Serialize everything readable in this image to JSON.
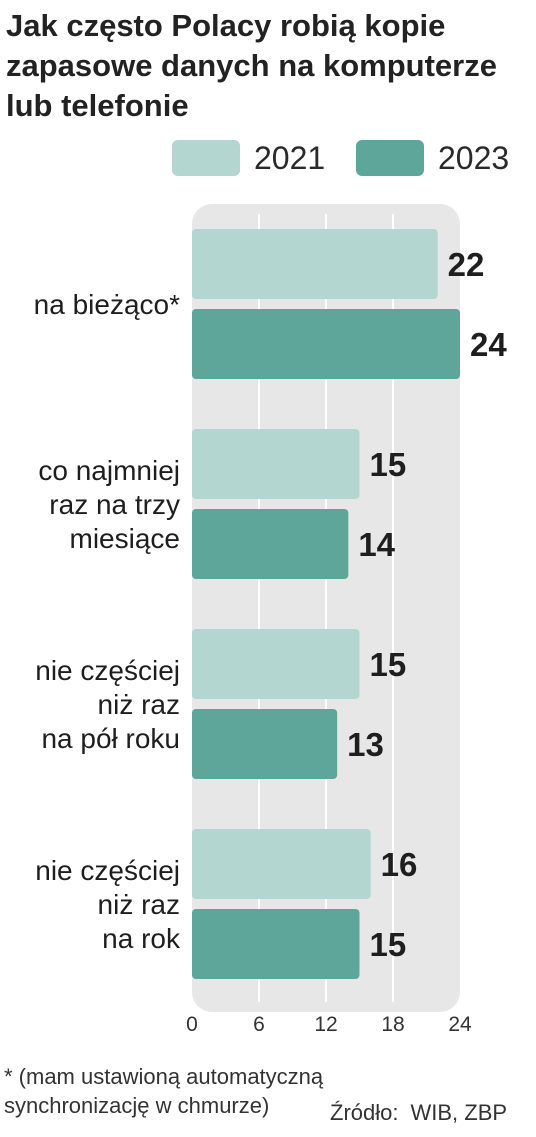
{
  "colors": {
    "series_2021": "#b3d6d0",
    "series_2023": "#5fa69a",
    "plot_background": "#e7e7e7",
    "gridline": "#ffffff",
    "text": "#1e1e1e"
  },
  "footnote": "* (mam ustawioną automatyczną synchronizację w chmurze)",
  "source": {
    "label": "Źródło:",
    "value": "WIB, ZBP"
  },
  "chart_data": {
    "type": "bar",
    "orientation": "horizontal",
    "title": "Jak często Polacy robią kopie zapasowe danych na komputerze lub telefonie",
    "xlabel": "",
    "ylabel": "",
    "categories": [
      [
        "na bieżąco*"
      ],
      [
        "co najmniej",
        "raz na trzy",
        "miesiące"
      ],
      [
        "nie częściej",
        "niż raz",
        "na pół roku"
      ],
      [
        "nie częściej",
        "niż raz",
        "na rok"
      ]
    ],
    "series": [
      {
        "name": "2021",
        "color": "#b3d6d0",
        "values": [
          22,
          15,
          15,
          16
        ]
      },
      {
        "name": "2023",
        "color": "#5fa69a",
        "values": [
          24,
          14,
          13,
          15
        ]
      }
    ],
    "xlim": [
      0,
      24
    ],
    "xticks": [
      0,
      6,
      12,
      18,
      24
    ],
    "grid": true,
    "legend_position": "top-right"
  }
}
